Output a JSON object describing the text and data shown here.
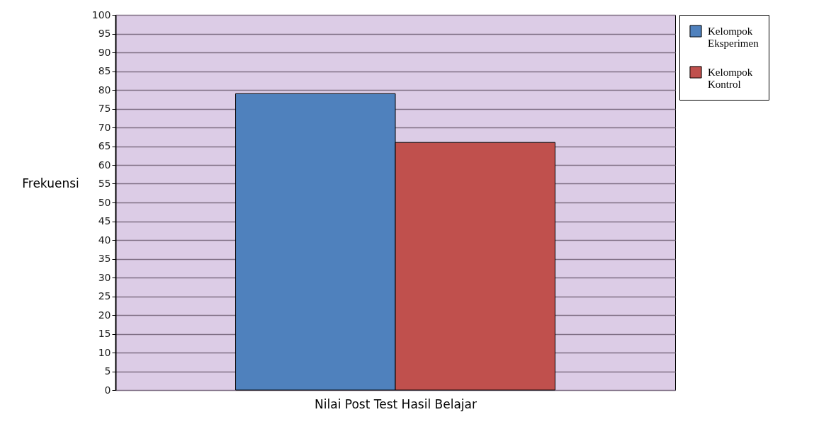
{
  "chart_data": {
    "type": "bar",
    "xlabel": "Nilai Post Test Hasil Belajar",
    "ylabel": "Frekuensi",
    "categories": [
      null
    ],
    "series": [
      {
        "name": "Kelompok Eksperimen",
        "color": "#4f81bd",
        "values": [
          79
        ]
      },
      {
        "name": "Kelompok Kontrol",
        "color": "#c0504d",
        "values": [
          66
        ]
      }
    ],
    "ylim": [
      0,
      100
    ],
    "yticks": [
      0,
      5,
      10,
      15,
      20,
      25,
      30,
      35,
      40,
      45,
      50,
      55,
      60,
      65,
      70,
      75,
      80,
      85,
      90,
      95,
      100
    ],
    "grid": "y",
    "legend": "right"
  }
}
